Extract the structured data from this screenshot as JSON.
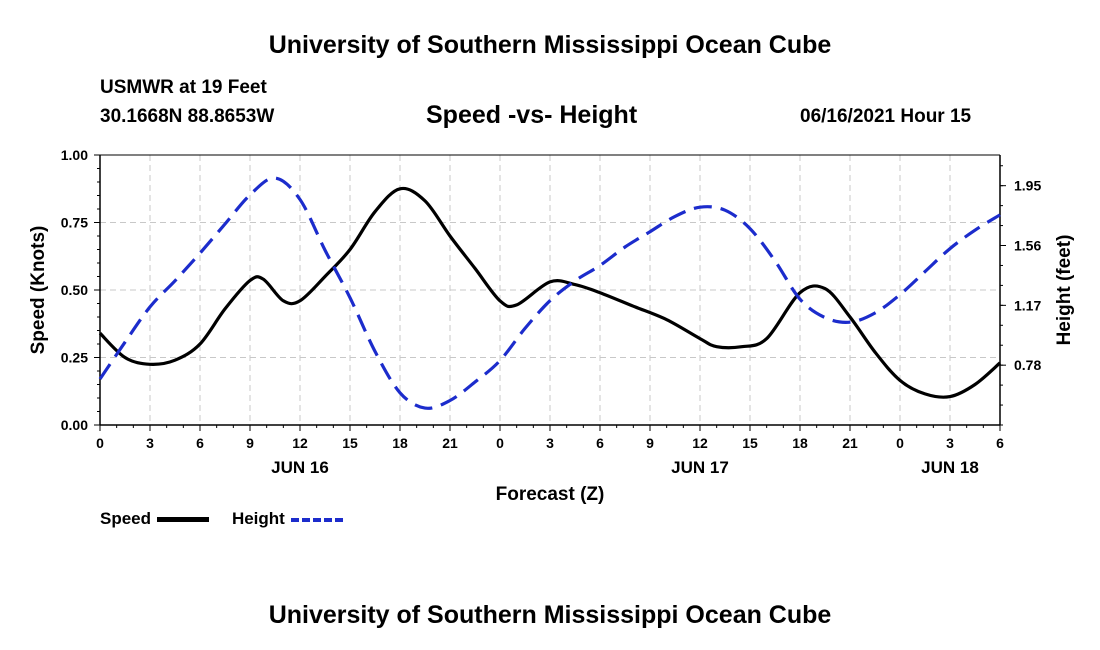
{
  "page": {
    "title_top": "University of Southern Mississippi Ocean Cube",
    "title_bottom": "University of Southern Mississippi Ocean Cube",
    "station": "USMWR at 19 Feet",
    "coords": "30.1668N  88.8653W",
    "subtitle": "Speed -vs- Height",
    "datetime": "06/16/2021 Hour 15"
  },
  "chart_data": {
    "type": "line",
    "xlabel": "Forecast (Z)",
    "ylabel_left": "Speed (Knots)",
    "ylabel_right": "Height (feet)",
    "x_range": [
      0,
      54
    ],
    "x_ticks": [
      "0",
      "3",
      "6",
      "9",
      "12",
      "15",
      "18",
      "21",
      "0",
      "3",
      "6",
      "9",
      "12",
      "15",
      "18",
      "21",
      "0",
      "3",
      "6"
    ],
    "date_labels": [
      {
        "label": "JUN 16",
        "x": 12
      },
      {
        "label": "JUN 17",
        "x": 36
      },
      {
        "label": "JUN 18",
        "x": 51
      }
    ],
    "y_left": {
      "range": [
        0,
        1
      ],
      "ticks": [
        "0.00",
        "0.25",
        "0.50",
        "0.75",
        "1.00"
      ],
      "tick_values": [
        0,
        0.25,
        0.5,
        0.75,
        1.0
      ]
    },
    "y_right": {
      "range": [
        0.39,
        2.15
      ],
      "ticks": [
        "0.78",
        "1.17",
        "1.56",
        "1.95"
      ],
      "tick_values": [
        0.78,
        1.17,
        1.56,
        1.95
      ]
    },
    "grid": true,
    "series": [
      {
        "name": "Speed",
        "axis": "left",
        "color": "#000000",
        "dash": "solid",
        "x": [
          0,
          1.5,
          3,
          4.5,
          6,
          7.5,
          9,
          9.8,
          11,
          12,
          13.5,
          15,
          16.5,
          18,
          19.5,
          21,
          22.5,
          24,
          25,
          27,
          28.5,
          30,
          32,
          34,
          36,
          37,
          38.5,
          40,
          42,
          43.5,
          45,
          46.5,
          48,
          49.5,
          51,
          52.5,
          54
        ],
        "values": [
          0.34,
          0.25,
          0.225,
          0.24,
          0.3,
          0.43,
          0.535,
          0.54,
          0.46,
          0.46,
          0.55,
          0.65,
          0.79,
          0.875,
          0.83,
          0.7,
          0.58,
          0.46,
          0.445,
          0.53,
          0.52,
          0.49,
          0.44,
          0.39,
          0.32,
          0.29,
          0.29,
          0.32,
          0.49,
          0.505,
          0.4,
          0.27,
          0.165,
          0.115,
          0.105,
          0.15,
          0.23
        ]
      },
      {
        "name": "Height",
        "axis": "right",
        "color": "#1c2ccc",
        "dash": "dashed",
        "x": [
          0,
          1.5,
          3,
          4.5,
          6,
          7.5,
          9,
          10.5,
          12,
          13.5,
          15,
          16.5,
          18,
          19.5,
          21,
          22.5,
          24,
          25.5,
          27,
          28.5,
          30,
          31.5,
          33,
          34.5,
          36,
          37.5,
          39,
          40.5,
          42,
          43.5,
          45,
          46.5,
          48,
          49.5,
          51,
          52.5,
          54
        ],
        "values": [
          0.69,
          0.93,
          1.16,
          1.33,
          1.51,
          1.7,
          1.89,
          2.0,
          1.86,
          1.53,
          1.22,
          0.87,
          0.6,
          0.5,
          0.55,
          0.67,
          0.81,
          1.02,
          1.2,
          1.33,
          1.43,
          1.55,
          1.65,
          1.75,
          1.81,
          1.79,
          1.67,
          1.46,
          1.21,
          1.09,
          1.06,
          1.12,
          1.24,
          1.39,
          1.54,
          1.66,
          1.76
        ]
      }
    ],
    "legend": [
      {
        "label": "Speed",
        "color": "#000000",
        "style": "solid"
      },
      {
        "label": "Height",
        "color": "#1c2ccc",
        "style": "dashed"
      }
    ]
  }
}
